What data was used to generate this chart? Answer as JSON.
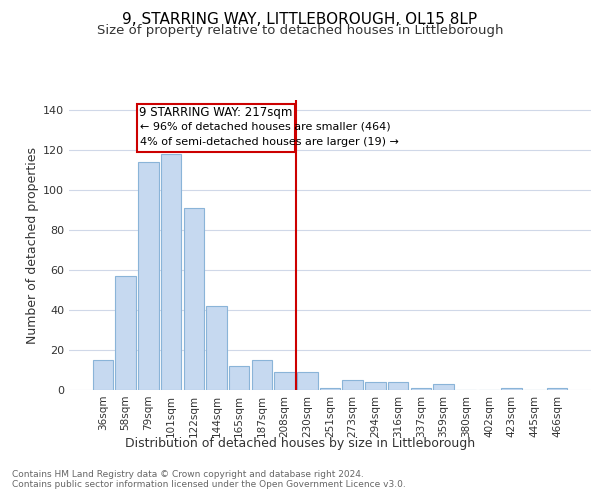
{
  "title": "9, STARRING WAY, LITTLEBOROUGH, OL15 8LP",
  "subtitle": "Size of property relative to detached houses in Littleborough",
  "xlabel": "Distribution of detached houses by size in Littleborough",
  "ylabel": "Number of detached properties",
  "bar_color": "#c6d9f0",
  "bar_edge_color": "#8ab4d8",
  "background_color": "#ffffff",
  "grid_color": "#d0d8e8",
  "categories": [
    "36sqm",
    "58sqm",
    "79sqm",
    "101sqm",
    "122sqm",
    "144sqm",
    "165sqm",
    "187sqm",
    "208sqm",
    "230sqm",
    "251sqm",
    "273sqm",
    "294sqm",
    "316sqm",
    "337sqm",
    "359sqm",
    "380sqm",
    "402sqm",
    "423sqm",
    "445sqm",
    "466sqm"
  ],
  "values": [
    15,
    57,
    114,
    118,
    91,
    42,
    12,
    15,
    9,
    9,
    1,
    5,
    4,
    4,
    1,
    3,
    0,
    0,
    1,
    0,
    1
  ],
  "ylim": [
    0,
    145
  ],
  "yticks": [
    0,
    20,
    40,
    60,
    80,
    100,
    120,
    140
  ],
  "property_label": "9 STARRING WAY: 217sqm",
  "annotation_line1": "← 96% of detached houses are smaller (464)",
  "annotation_line2": "4% of semi-detached houses are larger (19) →",
  "annotation_box_color": "#ffffff",
  "annotation_box_edge": "#cc0000",
  "vline_color": "#cc0000",
  "vline_x": 8.5,
  "footer_line1": "Contains HM Land Registry data © Crown copyright and database right 2024.",
  "footer_line2": "Contains public sector information licensed under the Open Government Licence v3.0.",
  "title_fontsize": 11,
  "subtitle_fontsize": 9.5,
  "axis_label_fontsize": 9,
  "tick_fontsize": 7.5,
  "annotation_fontsize": 8.5,
  "footer_fontsize": 6.5
}
